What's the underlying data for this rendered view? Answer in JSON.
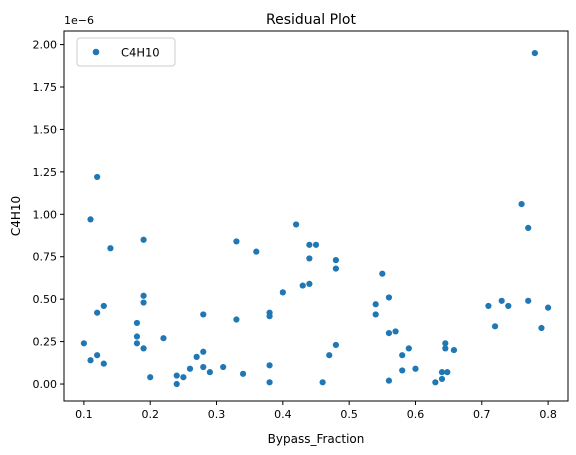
{
  "chart_data": {
    "type": "scatter",
    "title": "Residual Plot",
    "xlabel": "Bypass_Fraction",
    "ylabel": "C4H10",
    "offset_label": "1e−6",
    "xlim": [
      0.07,
      0.83
    ],
    "ylim": [
      -0.1,
      2.08
    ],
    "xticks": [
      0.1,
      0.2,
      0.3,
      0.4,
      0.5,
      0.6,
      0.7,
      0.8
    ],
    "xtick_labels": [
      "0.1",
      "0.2",
      "0.3",
      "0.4",
      "0.5",
      "0.6",
      "0.7",
      "0.8"
    ],
    "yticks": [
      0.0,
      0.25,
      0.5,
      0.75,
      1.0,
      1.25,
      1.5,
      1.75,
      2.0
    ],
    "ytick_labels": [
      "0.00",
      "0.25",
      "0.50",
      "0.75",
      "1.00",
      "1.25",
      "1.50",
      "1.75",
      "2.00"
    ],
    "grid": false,
    "legend_position": "top-left",
    "series": [
      {
        "name": "C4H10",
        "color": "#1f77b4",
        "x": [
          0.1,
          0.11,
          0.11,
          0.12,
          0.12,
          0.12,
          0.13,
          0.13,
          0.14,
          0.18,
          0.18,
          0.18,
          0.19,
          0.19,
          0.19,
          0.19,
          0.2,
          0.22,
          0.24,
          0.24,
          0.25,
          0.26,
          0.27,
          0.28,
          0.28,
          0.28,
          0.29,
          0.31,
          0.33,
          0.33,
          0.34,
          0.36,
          0.38,
          0.38,
          0.38,
          0.38,
          0.4,
          0.42,
          0.43,
          0.44,
          0.44,
          0.44,
          0.45,
          0.46,
          0.47,
          0.48,
          0.48,
          0.48,
          0.54,
          0.54,
          0.55,
          0.56,
          0.56,
          0.56,
          0.57,
          0.58,
          0.58,
          0.59,
          0.6,
          0.63,
          0.64,
          0.64,
          0.645,
          0.645,
          0.648,
          0.658,
          0.71,
          0.72,
          0.73,
          0.74,
          0.76,
          0.77,
          0.77,
          0.78,
          0.79,
          0.8
        ],
        "y": [
          0.24,
          0.97,
          0.14,
          0.17,
          0.42,
          1.22,
          0.46,
          0.12,
          0.8,
          0.36,
          0.24,
          0.28,
          0.21,
          0.48,
          0.52,
          0.85,
          0.04,
          0.27,
          0.05,
          0.0,
          0.04,
          0.09,
          0.16,
          0.1,
          0.19,
          0.41,
          0.07,
          0.1,
          0.84,
          0.38,
          0.06,
          0.78,
          0.42,
          0.4,
          0.11,
          0.01,
          0.54,
          0.94,
          0.58,
          0.74,
          0.59,
          0.82,
          0.82,
          0.01,
          0.17,
          0.73,
          0.68,
          0.23,
          0.47,
          0.41,
          0.65,
          0.3,
          0.51,
          0.02,
          0.31,
          0.08,
          0.17,
          0.21,
          0.09,
          0.01,
          0.07,
          0.03,
          0.24,
          0.21,
          0.07,
          0.2,
          0.46,
          0.34,
          0.49,
          0.46,
          1.06,
          0.92,
          0.49,
          1.95,
          0.33,
          0.45
        ]
      }
    ]
  }
}
